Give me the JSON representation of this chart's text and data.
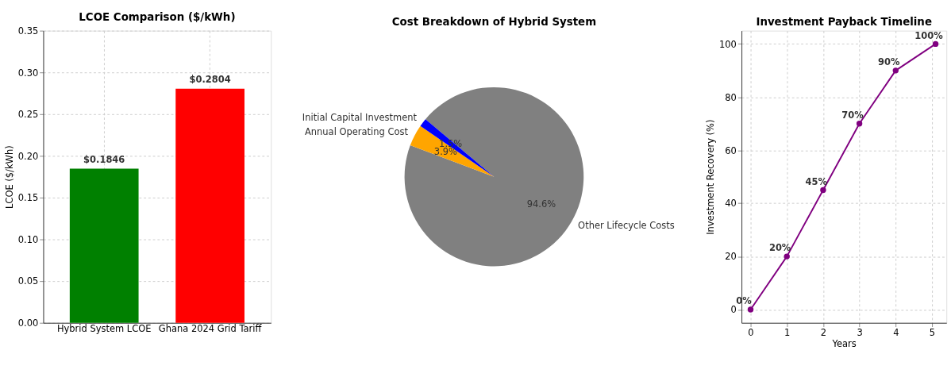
{
  "chart_data": [
    {
      "type": "bar",
      "title": "LCOE Comparison ($/kWh)",
      "ylabel": "LCOE ($/kWh)",
      "categories": [
        "Hybrid System LCOE",
        "Ghana 2024 Grid Tariff"
      ],
      "values": [
        0.1846,
        0.2804
      ],
      "colors": [
        "#008000",
        "#ff0000"
      ],
      "value_labels": [
        "$0.1846",
        "$0.2804"
      ],
      "ylim": [
        0,
        0.35
      ],
      "yticks": [
        {
          "value": 0,
          "label": "0.00"
        },
        {
          "value": 0.05,
          "label": "0.05"
        },
        {
          "value": 0.1,
          "label": "0.10"
        },
        {
          "value": 0.15,
          "label": "0.15"
        },
        {
          "value": 0.2,
          "label": "0.20"
        },
        {
          "value": 0.25,
          "label": "0.25"
        },
        {
          "value": 0.3,
          "label": "0.30"
        },
        {
          "value": 0.35,
          "label": "0.35"
        }
      ],
      "grid": true
    },
    {
      "type": "pie",
      "title": "Cost Breakdown of Hybrid System",
      "categories": [
        "Initial Capital Investment",
        "Annual Operating Cost",
        "Other Lifecycle Costs"
      ],
      "values": [
        1.5,
        3.9,
        94.6
      ],
      "colors": [
        "#0000ff",
        "#ffa500",
        "#808080"
      ],
      "value_labels": [
        "1.5%",
        "3.9%",
        "94.6%"
      ]
    },
    {
      "type": "line",
      "title": "Investment Payback Timeline",
      "xlabel": "Years",
      "ylabel": "Investment Recovery (%)",
      "x": [
        0,
        1,
        2,
        3,
        4,
        5.1
      ],
      "values": [
        0,
        20,
        45,
        70,
        90,
        100
      ],
      "color": "#800080",
      "value_labels": [
        "0%",
        "20%",
        "45%",
        "70%",
        "90%",
        "100%"
      ],
      "xlim": [
        -0.25,
        5.4
      ],
      "xticks": [
        0,
        1,
        2,
        3,
        4,
        5
      ],
      "ylim": [
        -5,
        105
      ],
      "yticks": [
        0,
        20,
        40,
        60,
        80,
        100
      ],
      "grid": true,
      "marker": "circle",
      "line_style": "solid"
    }
  ]
}
